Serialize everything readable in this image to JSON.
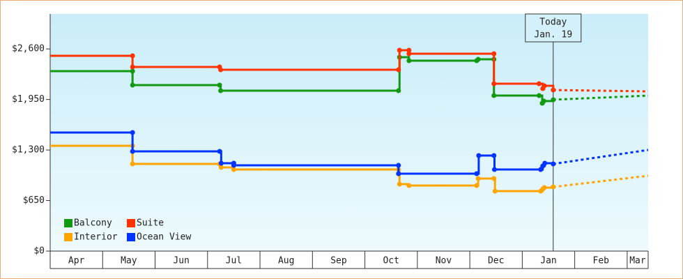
{
  "chart_data": {
    "type": "step-line",
    "annotation": {
      "title": "Today",
      "date": "Jan. 19",
      "x": 9.59
    },
    "xlim": [
      0,
      11.4
    ],
    "xticks": [
      {
        "value": 0,
        "label": "Apr"
      },
      {
        "value": 1,
        "label": "May"
      },
      {
        "value": 2,
        "label": "Jun"
      },
      {
        "value": 3,
        "label": "Jul"
      },
      {
        "value": 4,
        "label": "Aug"
      },
      {
        "value": 5,
        "label": "Sep"
      },
      {
        "value": 6,
        "label": "Oct"
      },
      {
        "value": 7,
        "label": "Nov"
      },
      {
        "value": 8,
        "label": "Dec"
      },
      {
        "value": 9,
        "label": "Jan"
      },
      {
        "value": 10,
        "label": "Feb"
      },
      {
        "value": 11,
        "label": "Mar"
      }
    ],
    "ylim": [
      0,
      3050
    ],
    "yticks": [
      {
        "value": 0,
        "label": "$0"
      },
      {
        "value": 650,
        "label": "$650"
      },
      {
        "value": 1300,
        "label": "$1,300"
      },
      {
        "value": 1950,
        "label": "$1,950"
      },
      {
        "value": 2600,
        "label": "$2,600"
      }
    ],
    "series": [
      {
        "name": "Balcony",
        "color": "#119911",
        "x": [
          0,
          1.57,
          1.57,
          3.23,
          3.25,
          6.64,
          6.66,
          6.84,
          8.13,
          8.16,
          8.46,
          8.46,
          9.32,
          9.38,
          9.41,
          9.59,
          11.4
        ],
        "values": [
          2314,
          2314,
          2135,
          2135,
          2063,
          2063,
          2494,
          2449,
          2449,
          2467,
          2467,
          2000,
          2000,
          1902,
          1930,
          1947,
          2000
        ]
      },
      {
        "name": "Suite",
        "color": "#ff3300",
        "x": [
          0,
          1.57,
          1.57,
          3.23,
          3.25,
          6.64,
          6.66,
          6.84,
          6.84,
          8.46,
          8.46,
          9.32,
          9.39,
          9.42,
          9.59,
          11.4
        ],
        "values": [
          2512,
          2512,
          2368,
          2368,
          2332,
          2332,
          2583,
          2583,
          2539,
          2539,
          2153,
          2153,
          2090,
          2126,
          2072,
          2054
        ]
      },
      {
        "name": "Interior",
        "color": "#ffa500",
        "x": [
          0,
          1.57,
          1.57,
          3.23,
          3.26,
          3.5,
          6.64,
          6.66,
          6.84,
          8.13,
          8.16,
          8.46,
          8.48,
          9.35,
          9.39,
          9.42,
          9.59,
          11.4
        ],
        "values": [
          1354,
          1354,
          1121,
          1121,
          1076,
          1049,
          1049,
          861,
          843,
          843,
          933,
          933,
          771,
          771,
          798,
          816,
          825,
          969
        ]
      },
      {
        "name": "Ocean View",
        "color": "#0033ff",
        "x": [
          0,
          1.57,
          1.57,
          3.23,
          3.26,
          3.5,
          3.5,
          6.64,
          6.64,
          8.13,
          8.17,
          8.46,
          8.47,
          9.35,
          9.39,
          9.43,
          9.59,
          11.4
        ],
        "values": [
          1525,
          1525,
          1283,
          1283,
          1130,
          1130,
          1103,
          1103,
          996,
          996,
          1229,
          1229,
          1049,
          1049,
          1094,
          1130,
          1121,
          1301
        ]
      }
    ]
  }
}
